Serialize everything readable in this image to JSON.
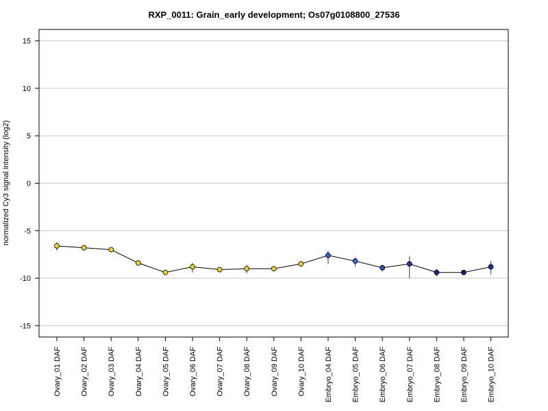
{
  "chart_data": {
    "type": "line",
    "title": "RXP_0011: Grain_early development; Os07g0108800_27536",
    "xlabel": "",
    "ylabel": "normalized Cy3 signal intensity (log2)",
    "ylim": [
      -16.2,
      16.2
    ],
    "yticks": [
      -15,
      -10,
      -5,
      0,
      5,
      10,
      15
    ],
    "grid": "horizontal",
    "categories": [
      "Ovary_01 DAF",
      "Ovary_02 DAF",
      "Ovary_03 DAF",
      "Ovary_04 DAF",
      "Ovary_05 DAF",
      "Ovary_06 DAF",
      "Ovary_07 DAF",
      "Ovary_08 DAF",
      "Ovary_09 DAF",
      "Ovary_10 DAF",
      "Embryo_04 DAF",
      "Embryo_05 DAF",
      "Embryo_06 DAF",
      "Embryo_07 DAF",
      "Embryo_08 DAF",
      "Embryo_09 DAF",
      "Embryo_10 DAF"
    ],
    "series": [
      {
        "values": [
          -6.6,
          -6.8,
          -7.0,
          -8.4,
          -9.4,
          -8.8,
          -9.1,
          -9.0,
          -9.0,
          -8.5,
          -7.6,
          -8.2,
          -8.9,
          -8.5,
          -9.4,
          -9.4,
          -8.8
        ],
        "error_low": [
          -7.1,
          -7.0,
          -7.1,
          -8.6,
          -9.5,
          -9.4,
          -9.3,
          -9.5,
          -9.1,
          -8.7,
          -8.5,
          -8.8,
          -9.3,
          -10.0,
          -9.8,
          -9.5,
          -9.6
        ],
        "error_high": [
          -6.2,
          -6.5,
          -6.9,
          -8.2,
          -9.2,
          -8.4,
          -8.9,
          -8.6,
          -8.9,
          -8.3,
          -7.1,
          -7.8,
          -8.6,
          -7.7,
          -9.0,
          -9.3,
          -8.2
        ],
        "point_colors": [
          "#e6cf2e",
          "#e6cf2e",
          "#e6cf2e",
          "#e6cf2e",
          "#e6cf2e",
          "#e6cf2e",
          "#e6cf2e",
          "#e6cf2e",
          "#e6cf2e",
          "#e6cf2e",
          "#3c64c8",
          "#3c64c8",
          "#2e4fb0",
          "#22399a",
          "#1a2a8a",
          "#141f7a",
          "#1c2e8e"
        ]
      }
    ],
    "line_color": "#000000",
    "grid_color": "#c8c8c8"
  }
}
